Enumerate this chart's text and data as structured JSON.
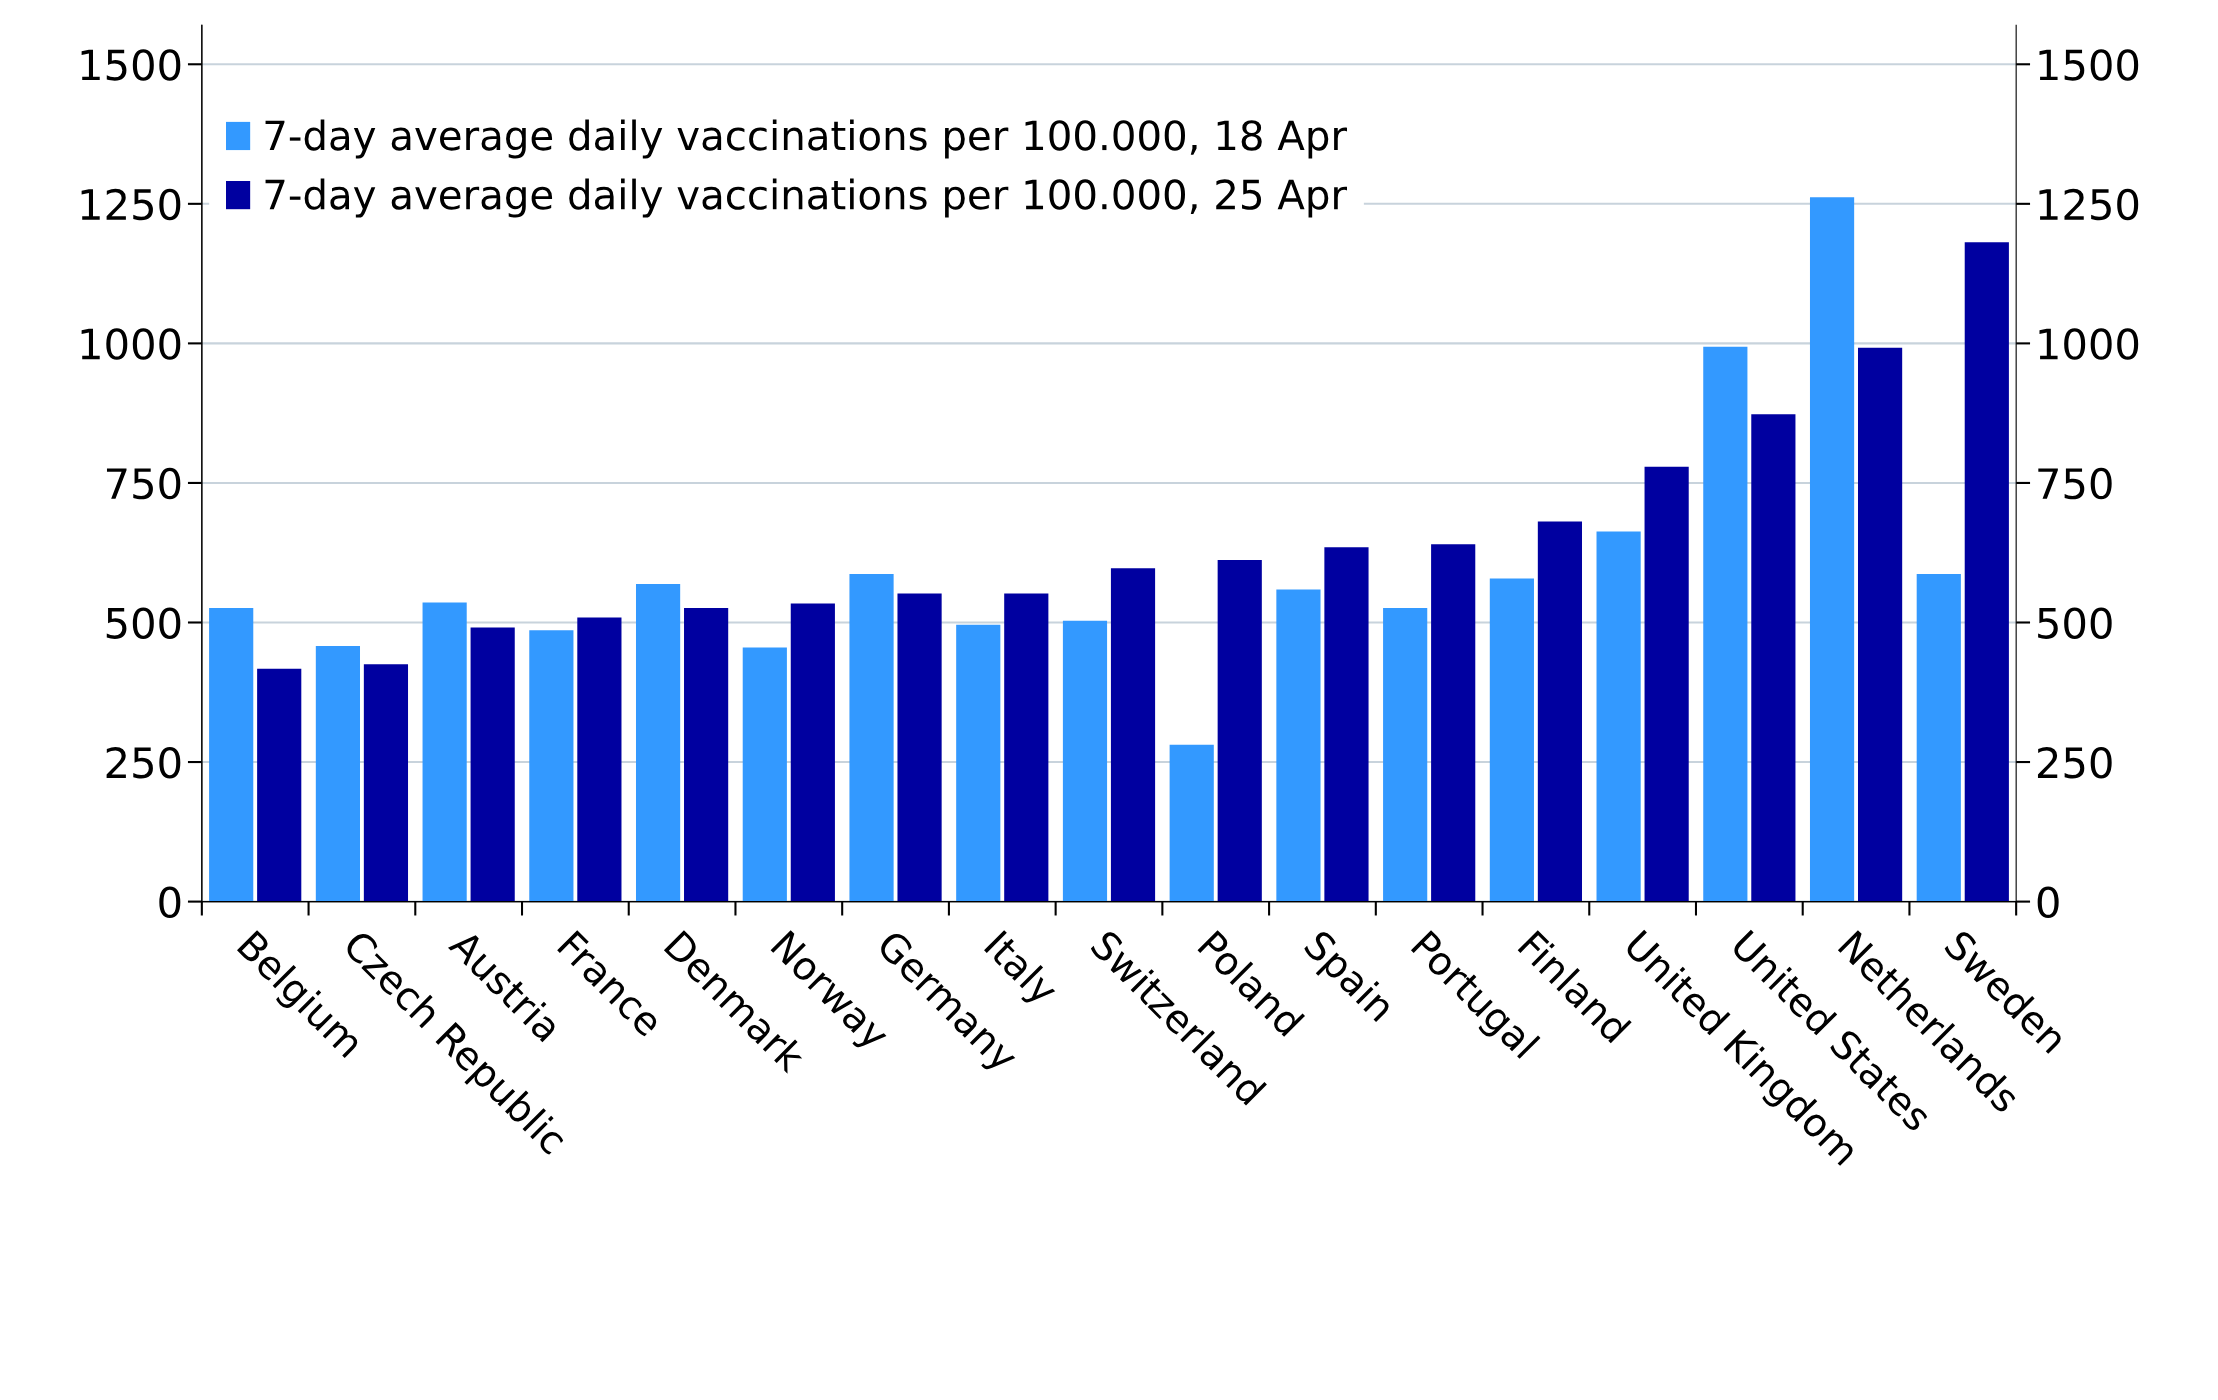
{
  "chart_data": {
    "type": "bar",
    "categories": [
      "Belgium",
      "Czech Republic",
      "Austria",
      "France",
      "Denmark",
      "Norway",
      "Germany",
      "Italy",
      "Switzerland",
      "Poland",
      "Spain",
      "Portugal",
      "Finland",
      "United Kingdom",
      "United States",
      "Netherlands",
      "Sweden"
    ],
    "series": [
      {
        "name": "7-day average daily vaccinations per 100.000, 18 Apr",
        "color": "#3399ff",
        "values": [
          526,
          458,
          536,
          486,
          569,
          455,
          587,
          496,
          503,
          281,
          559,
          526,
          579,
          663,
          994,
          1262,
          587
        ]
      },
      {
        "name": "7-day average daily vaccinations per 100.000, 25 Apr",
        "color": "#0000a0",
        "values": [
          417,
          425,
          491,
          509,
          526,
          534,
          552,
          552,
          597,
          612,
          635,
          640,
          681,
          779,
          873,
          992,
          1181
        ]
      }
    ],
    "ylim": [
      0,
      1570
    ],
    "yticks": [
      0,
      250,
      500,
      750,
      1000,
      1250,
      1500
    ],
    "y2lim": [
      0,
      1570
    ],
    "y2ticks": [
      0,
      250,
      500,
      750,
      1000,
      1250,
      1500
    ],
    "grid": "y",
    "legend": "top left"
  }
}
